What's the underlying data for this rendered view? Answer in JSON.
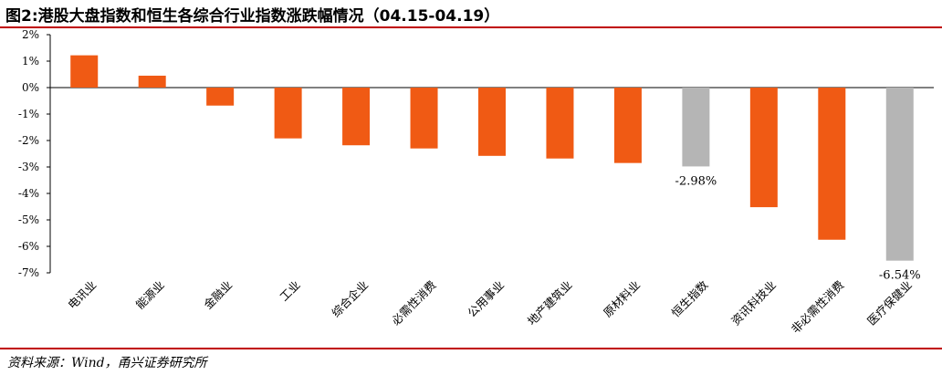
{
  "title": "图2:港股大盘指数和恒生各综合行业指数涨跌幅情况（04.15-04.19）",
  "source": "资料来源：Wind，甬兴证券研究所",
  "colors": {
    "orange": "#f05a14",
    "gray": "#b5b5b5",
    "rule": "#c00000"
  },
  "chart_data": {
    "type": "bar",
    "categories": [
      "电讯业",
      "能源业",
      "金融业",
      "工业",
      "综合企业",
      "必需性消费",
      "公用事业",
      "地产建筑业",
      "原材料业",
      "恒生指数",
      "资讯科技业",
      "非必需性消费",
      "医疗保健业"
    ],
    "values": [
      1.22,
      0.45,
      -0.68,
      -1.92,
      -2.18,
      -2.3,
      -2.58,
      -2.68,
      -2.85,
      -2.98,
      -4.52,
      -5.75,
      -6.54
    ],
    "bar_colors": [
      "orange",
      "orange",
      "orange",
      "orange",
      "orange",
      "orange",
      "orange",
      "orange",
      "orange",
      "gray",
      "orange",
      "orange",
      "gray"
    ],
    "data_labels": [
      {
        "index": 9,
        "text": "-2.98%"
      },
      {
        "index": 12,
        "text": "-6.54%"
      }
    ],
    "ylim": [
      -7,
      2
    ],
    "yticks": [
      2,
      1,
      0,
      -1,
      -2,
      -3,
      -4,
      -5,
      -6,
      -7
    ],
    "ytick_labels": [
      "2%",
      "1%",
      "0%",
      "-1%",
      "-2%",
      "-3%",
      "-4%",
      "-5%",
      "-6%",
      "-7%"
    ],
    "xlabel": "",
    "ylabel": "",
    "grid": false,
    "legend": "none"
  }
}
